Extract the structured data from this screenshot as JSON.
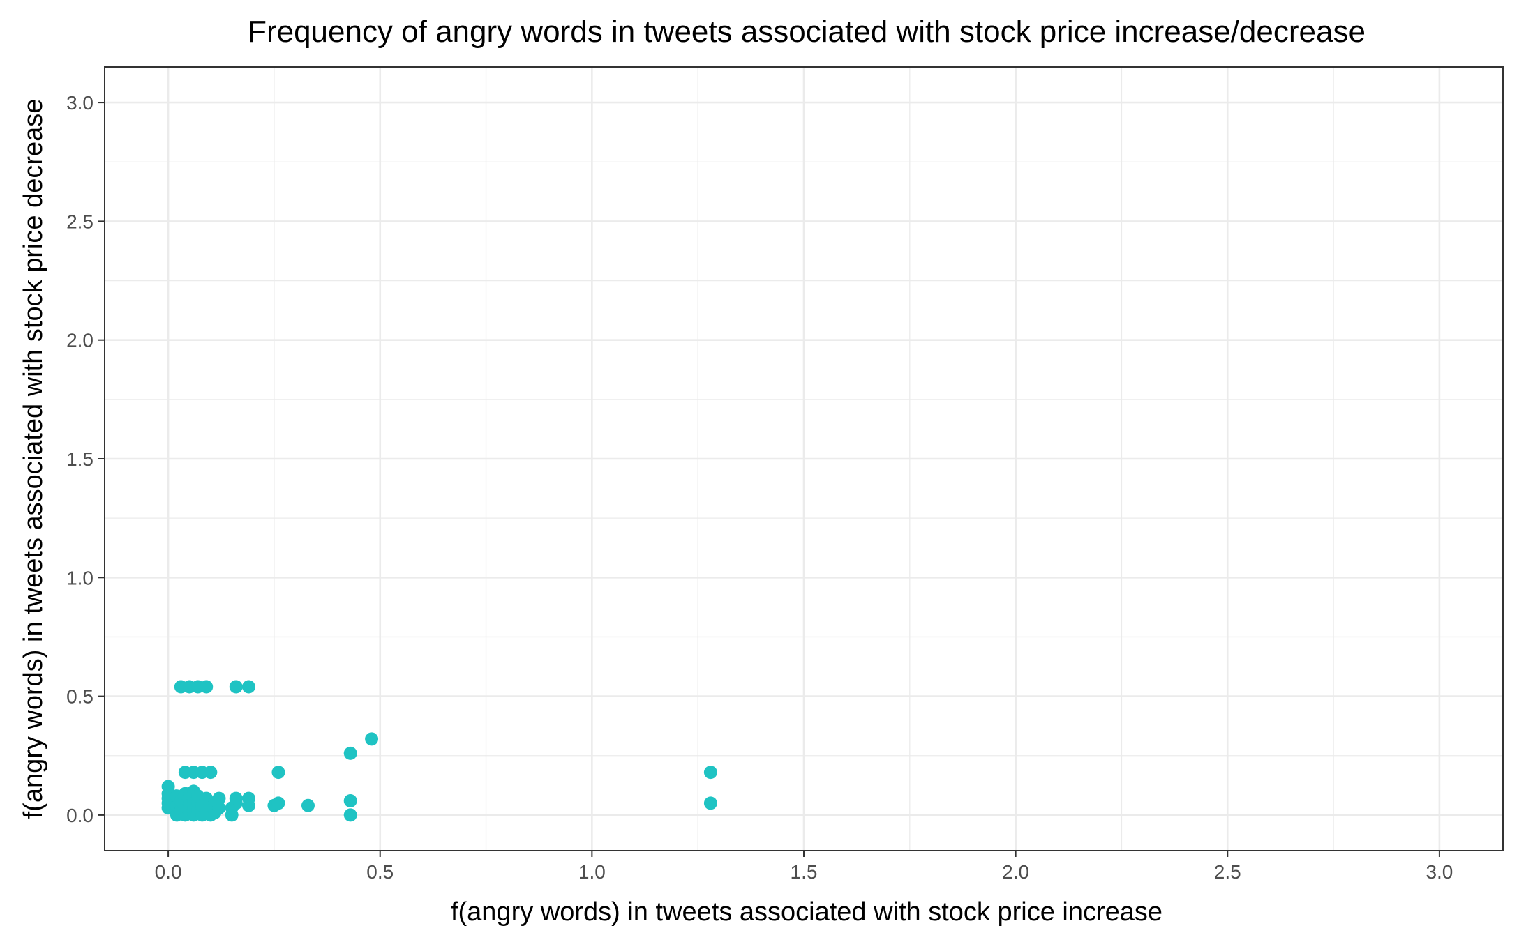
{
  "chart_data": {
    "type": "scatter",
    "title": "Frequency of angry words in tweets associated with stock price increase/decrease",
    "xlabel": "f(angry words) in tweets associated with stock price increase",
    "ylabel": "f(angry words) in tweets associated with stock price decrease",
    "xlim": [
      -0.15,
      3.15
    ],
    "ylim": [
      -0.15,
      3.15
    ],
    "x_ticks": [
      0.0,
      0.5,
      1.0,
      1.5,
      2.0,
      2.5,
      3.0
    ],
    "y_ticks": [
      0.0,
      0.5,
      1.0,
      1.5,
      2.0,
      2.5,
      3.0
    ],
    "x_tick_labels": [
      "0.0",
      "0.5",
      "1.0",
      "1.5",
      "2.0",
      "2.5",
      "3.0"
    ],
    "y_tick_labels": [
      "0.0",
      "0.5",
      "1.0",
      "1.5",
      "2.0",
      "2.5",
      "3.0"
    ],
    "grid": true,
    "point_color": "#1fc3c3",
    "points": [
      {
        "x": 0.0,
        "y": 0.03
      },
      {
        "x": 0.0,
        "y": 0.05
      },
      {
        "x": 0.0,
        "y": 0.07
      },
      {
        "x": 0.0,
        "y": 0.09
      },
      {
        "x": 0.0,
        "y": 0.12
      },
      {
        "x": 0.02,
        "y": 0.0
      },
      {
        "x": 0.02,
        "y": 0.04
      },
      {
        "x": 0.02,
        "y": 0.08
      },
      {
        "x": 0.03,
        "y": 0.02
      },
      {
        "x": 0.03,
        "y": 0.06
      },
      {
        "x": 0.03,
        "y": 0.54
      },
      {
        "x": 0.04,
        "y": 0.0
      },
      {
        "x": 0.04,
        "y": 0.03
      },
      {
        "x": 0.04,
        "y": 0.07
      },
      {
        "x": 0.04,
        "y": 0.09
      },
      {
        "x": 0.04,
        "y": 0.18
      },
      {
        "x": 0.05,
        "y": 0.01
      },
      {
        "x": 0.05,
        "y": 0.05
      },
      {
        "x": 0.05,
        "y": 0.09
      },
      {
        "x": 0.05,
        "y": 0.54
      },
      {
        "x": 0.06,
        "y": 0.0
      },
      {
        "x": 0.06,
        "y": 0.03
      },
      {
        "x": 0.06,
        "y": 0.06
      },
      {
        "x": 0.06,
        "y": 0.1
      },
      {
        "x": 0.06,
        "y": 0.18
      },
      {
        "x": 0.07,
        "y": 0.02
      },
      {
        "x": 0.07,
        "y": 0.05
      },
      {
        "x": 0.07,
        "y": 0.08
      },
      {
        "x": 0.07,
        "y": 0.54
      },
      {
        "x": 0.08,
        "y": 0.0
      },
      {
        "x": 0.08,
        "y": 0.04
      },
      {
        "x": 0.08,
        "y": 0.18
      },
      {
        "x": 0.09,
        "y": 0.02
      },
      {
        "x": 0.09,
        "y": 0.07
      },
      {
        "x": 0.09,
        "y": 0.54
      },
      {
        "x": 0.1,
        "y": 0.0
      },
      {
        "x": 0.1,
        "y": 0.04
      },
      {
        "x": 0.1,
        "y": 0.18
      },
      {
        "x": 0.11,
        "y": 0.01
      },
      {
        "x": 0.11,
        "y": 0.05
      },
      {
        "x": 0.12,
        "y": 0.03
      },
      {
        "x": 0.12,
        "y": 0.07
      },
      {
        "x": 0.15,
        "y": 0.0
      },
      {
        "x": 0.15,
        "y": 0.03
      },
      {
        "x": 0.16,
        "y": 0.05
      },
      {
        "x": 0.16,
        "y": 0.07
      },
      {
        "x": 0.16,
        "y": 0.54
      },
      {
        "x": 0.19,
        "y": 0.04
      },
      {
        "x": 0.19,
        "y": 0.07
      },
      {
        "x": 0.19,
        "y": 0.54
      },
      {
        "x": 0.25,
        "y": 0.04
      },
      {
        "x": 0.26,
        "y": 0.05
      },
      {
        "x": 0.26,
        "y": 0.18
      },
      {
        "x": 0.33,
        "y": 0.04
      },
      {
        "x": 0.43,
        "y": 0.0
      },
      {
        "x": 0.43,
        "y": 0.06
      },
      {
        "x": 0.43,
        "y": 0.26
      },
      {
        "x": 0.48,
        "y": 0.32
      },
      {
        "x": 1.28,
        "y": 0.05
      },
      {
        "x": 1.28,
        "y": 0.18
      }
    ]
  }
}
